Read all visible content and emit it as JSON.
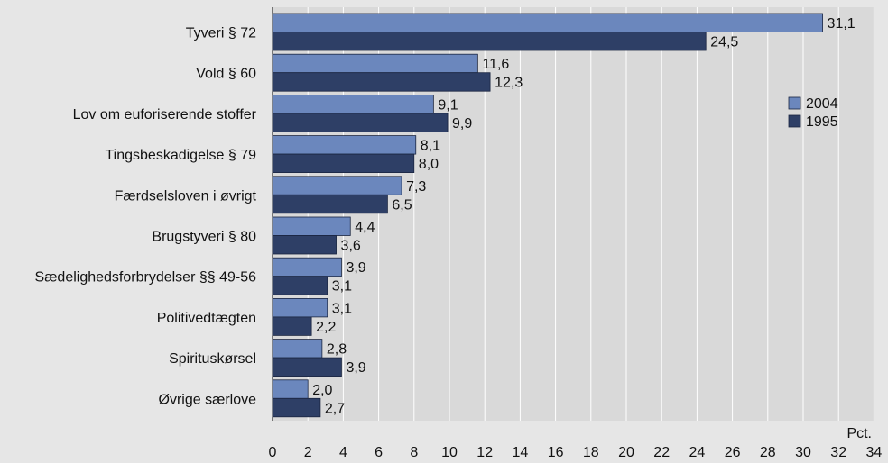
{
  "chart_data": {
    "type": "bar",
    "orientation": "horizontal",
    "categories": [
      "Tyveri § 72",
      "Vold § 60",
      "Lov om euforiserende stoffer",
      "Tingsbeskadigelse § 79",
      "Færdselsloven i øvrigt",
      "Brugstyveri § 80",
      "Sædelighedsforbrydelser §§ 49-56",
      "Politivedtægten",
      "Spirituskørsel",
      "Øvrige særlove"
    ],
    "series": [
      {
        "name": "2004",
        "color": "#6b87bd",
        "values": [
          31.1,
          11.6,
          9.1,
          8.1,
          7.3,
          4.4,
          3.9,
          3.1,
          2.8,
          2.0
        ],
        "labels": [
          "31,1",
          "11,6",
          "9,1",
          "8,1",
          "7,3",
          "4,4",
          "3,9",
          "3,1",
          "2,8",
          "2,0"
        ]
      },
      {
        "name": "1995",
        "color": "#2e3f66",
        "values": [
          24.5,
          12.3,
          9.9,
          8.0,
          6.5,
          3.6,
          3.1,
          2.2,
          3.9,
          2.7
        ],
        "labels": [
          "24,5",
          "12,3",
          "9,9",
          "8,0",
          "6,5",
          "3,6",
          "3,1",
          "2,2",
          "3,9",
          "2,7"
        ]
      }
    ],
    "xlim": [
      0,
      34
    ],
    "xticks": [
      0,
      2,
      4,
      6,
      8,
      10,
      12,
      14,
      16,
      18,
      20,
      22,
      24,
      26,
      28,
      30,
      32,
      34
    ],
    "unit_label": "Pct.",
    "grid": "vertical",
    "legend": "right"
  }
}
